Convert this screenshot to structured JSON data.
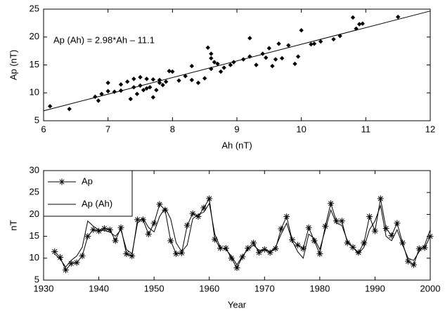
{
  "chart_data": [
    {
      "type": "scatter",
      "x_label": "Ah (nT)",
      "y_label": "Ap (nT)",
      "annotation": "Ap (Ah) = 2.98*Ah – 11.1",
      "xlim": [
        6,
        12
      ],
      "xticks": [
        6,
        7,
        8,
        9,
        10,
        11,
        12
      ],
      "ylim": [
        5,
        25
      ],
      "yticks": [
        5,
        10,
        15,
        20,
        25
      ],
      "series": [
        {
          "color": "#000000",
          "marker": "diamond",
          "line": false,
          "x": [
            6.1,
            6.4,
            6.8,
            6.85,
            6.9,
            7.0,
            7.0,
            7.1,
            7.2,
            7.2,
            7.3,
            7.35,
            7.4,
            7.4,
            7.45,
            7.5,
            7.5,
            7.55,
            7.6,
            7.6,
            7.65,
            7.7,
            7.7,
            7.75,
            7.8,
            7.8,
            7.85,
            7.9,
            7.95,
            8.0,
            8.1,
            8.2,
            8.3,
            8.3,
            8.4,
            8.5,
            8.55,
            8.6,
            8.6,
            8.6,
            8.65,
            8.7,
            8.75,
            8.8,
            8.9,
            8.95,
            9.1,
            9.2,
            9.2,
            9.3,
            9.4,
            9.45,
            9.5,
            9.55,
            9.6,
            9.65,
            9.7,
            9.8,
            9.9,
            9.95,
            10.0,
            10.15,
            10.2,
            10.3,
            10.5,
            10.6,
            10.8,
            10.85,
            10.9,
            10.95,
            11.5
          ],
          "values": [
            7.6,
            7.1,
            9.3,
            8.6,
            9.8,
            10.3,
            11.8,
            10.2,
            10.4,
            11.5,
            12.0,
            8.9,
            11.0,
            12.5,
            9.8,
            12.8,
            11.3,
            10.5,
            12.5,
            10.8,
            11.0,
            12.4,
            9.2,
            10.5,
            11.8,
            12.3,
            11.4,
            12.0,
            13.9,
            13.8,
            12.2,
            13.0,
            14.8,
            12.3,
            11.8,
            12.6,
            18.1,
            17.0,
            16.2,
            14.3,
            15.5,
            15.2,
            13.8,
            14.5,
            15.0,
            15.5,
            16.0,
            19.8,
            16.5,
            15.0,
            17.0,
            16.3,
            18.0,
            14.8,
            16.0,
            18.8,
            16.2,
            18.5,
            15.2,
            16.5,
            21.2,
            18.7,
            18.8,
            19.2,
            19.6,
            20.2,
            23.5,
            21.5,
            22.3,
            22.4,
            23.6
          ]
        },
        {
          "color": "#000000",
          "marker": "none",
          "line": true,
          "x": [
            6,
            12
          ],
          "values": [
            6.78,
            24.66
          ]
        }
      ]
    },
    {
      "type": "line",
      "x_label": "Year",
      "y_label": "nT",
      "legend": "upper left",
      "xlim": [
        1930,
        2000
      ],
      "xticks": [
        1930,
        1940,
        1950,
        1960,
        1970,
        1980,
        1990,
        2000
      ],
      "ylim": [
        5,
        30
      ],
      "yticks": [
        5,
        10,
        15,
        20,
        25,
        30
      ],
      "x": [
        1932,
        1933,
        1934,
        1935,
        1936,
        1937,
        1938,
        1939,
        1940,
        1941,
        1942,
        1943,
        1944,
        1945,
        1946,
        1947,
        1948,
        1949,
        1950,
        1951,
        1952,
        1953,
        1954,
        1955,
        1956,
        1957,
        1958,
        1959,
        1960,
        1961,
        1962,
        1963,
        1964,
        1965,
        1966,
        1967,
        1968,
        1969,
        1970,
        1971,
        1972,
        1973,
        1974,
        1975,
        1976,
        1977,
        1978,
        1979,
        1980,
        1981,
        1982,
        1983,
        1984,
        1985,
        1986,
        1987,
        1988,
        1989,
        1990,
        1991,
        1992,
        1993,
        1994,
        1995,
        1996,
        1997,
        1998,
        1999,
        2000
      ],
      "series": [
        {
          "name": "Ap",
          "color": "#000000",
          "marker": "star",
          "line": true,
          "values": [
            11.5,
            10.2,
            7.3,
            8.8,
            9,
            10.5,
            15,
            16.5,
            16.2,
            16.8,
            16.5,
            14,
            17,
            11,
            10.5,
            18.8,
            18.8,
            15.5,
            18,
            22.3,
            21,
            14,
            11,
            11.2,
            17.5,
            20.2,
            19.5,
            21.5,
            23.6,
            14.3,
            12.3,
            12.3,
            10,
            7.8,
            10.3,
            12.3,
            13.5,
            11.3,
            12,
            11.3,
            12.2,
            16.7,
            19.5,
            14.2,
            13,
            12.2,
            17,
            14,
            11,
            17.3,
            22.5,
            18.5,
            18.5,
            13.5,
            12.5,
            11.3,
            13.5,
            19.5,
            16.2,
            23.6,
            16.8,
            15.2,
            18,
            13.5,
            9.3,
            8.5,
            12.2,
            12.4,
            15
          ]
        },
        {
          "name": "Ap (Ah)",
          "color": "#000000",
          "marker": "none",
          "line": true,
          "values": [
            11,
            9.8,
            8,
            9.5,
            10.5,
            12.5,
            18.5,
            17.3,
            16.5,
            16.3,
            16,
            15,
            16.5,
            12,
            11,
            18,
            19.2,
            17,
            16,
            19.5,
            21.5,
            19,
            13.5,
            11.5,
            13,
            19,
            20,
            20.5,
            22.5,
            15.5,
            12.5,
            12,
            10.5,
            8.5,
            10.5,
            12,
            13,
            11.8,
            12,
            11.5,
            12.5,
            15.5,
            18,
            14,
            11.5,
            10,
            15.5,
            14.5,
            12,
            16.5,
            21,
            18,
            17.5,
            14,
            12.5,
            11,
            12.5,
            16.5,
            18.5,
            22,
            15,
            14,
            16.5,
            13,
            10,
            9.5,
            11.5,
            13,
            16.5
          ]
        }
      ]
    }
  ]
}
